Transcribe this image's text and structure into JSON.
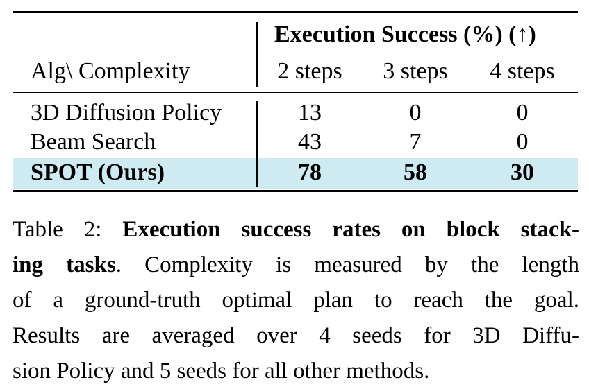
{
  "table": {
    "group_header": "Execution Success (%) (↑)",
    "row_header": "Alg\\ Complexity",
    "columns": [
      "2 steps",
      "3 steps",
      "4 steps"
    ],
    "rows": [
      {
        "name": "3D Diffusion Policy",
        "values": [
          "13",
          "0",
          "0"
        ]
      },
      {
        "name": "Beam Search",
        "values": [
          "43",
          "7",
          "0"
        ]
      },
      {
        "name": "SPOT (Ours)",
        "values": [
          "78",
          "58",
          "30"
        ],
        "highlighted": true
      }
    ],
    "highlight_color": "#cdebf0"
  },
  "caption": {
    "label": "Table 2: ",
    "bold_title_part1": "Execution success rates on block stack-",
    "bold_title_part2": "ing tasks",
    "line2_rest": ". Complexity is measured by the length",
    "line3": "of a ground-truth optimal plan to reach the goal.",
    "line4": "Results are averaged over 4 seeds for 3D Diffu-",
    "line5": "sion Policy and 5 seeds for all other methods."
  }
}
